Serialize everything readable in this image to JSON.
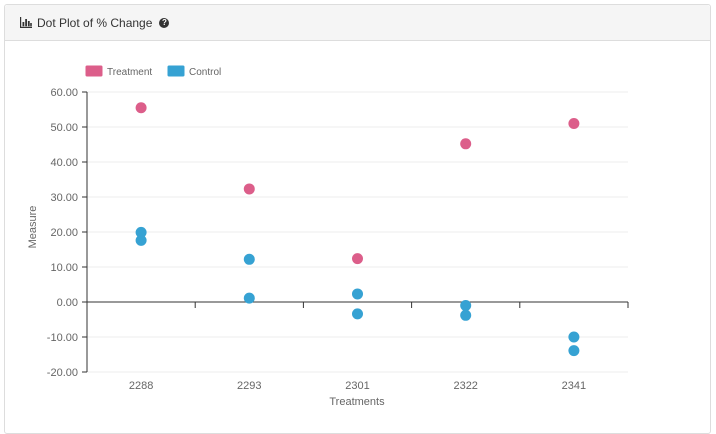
{
  "panel": {
    "title": "Dot Plot of % Change",
    "icon": "bar-chart-icon",
    "help_icon": "question-circle-icon"
  },
  "chart_data": {
    "type": "scatter",
    "categories": [
      "2288",
      "2293",
      "2301",
      "2322",
      "2341"
    ],
    "series": [
      {
        "name": "Treatment",
        "color": "#dc5e8a",
        "values": [
          [
            55.5
          ],
          [
            32.3
          ],
          [
            12.4
          ],
          [
            45.2
          ],
          [
            51.0
          ]
        ]
      },
      {
        "name": "Control",
        "color": "#36a2d3",
        "values": [
          [
            19.9,
            17.6
          ],
          [
            12.2,
            1.1
          ],
          [
            2.3,
            -3.4
          ],
          [
            -1.0,
            -3.8
          ],
          [
            -10.0,
            -13.9
          ]
        ]
      }
    ],
    "xlabel": "Treatments",
    "ylabel": "Measure",
    "ylim": [
      -20,
      60
    ],
    "yticks": [
      "60.00",
      "50.00",
      "40.00",
      "30.00",
      "20.00",
      "10.00",
      "0.00",
      "-10.00",
      "-20.00"
    ],
    "grid": true,
    "legend": "top-left"
  }
}
